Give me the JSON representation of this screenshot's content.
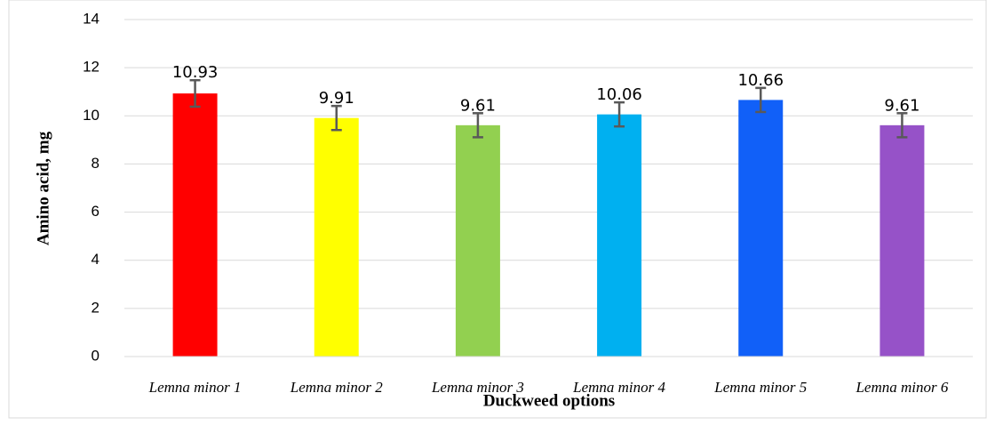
{
  "chart_data": {
    "type": "bar",
    "categories": [
      "Lemna minor 1",
      "Lemna minor 2",
      "Lemna minor 3",
      "Lemna minor 4",
      "Lemna minor 5",
      "Lemna minor 6"
    ],
    "values": [
      10.93,
      9.91,
      9.61,
      10.06,
      10.66,
      9.61
    ],
    "errors": [
      0.55,
      0.5,
      0.5,
      0.5,
      0.5,
      0.5
    ],
    "colors": [
      "#ff0000",
      "#ffff00",
      "#92d050",
      "#00b0f0",
      "#1160f8",
      "#9652c8"
    ],
    "x_label": "Duckweed options",
    "y_label": "Amino acid, mg",
    "ylim": [
      0,
      14
    ],
    "yticks": [
      0,
      2,
      4,
      6,
      8,
      10,
      12,
      14
    ],
    "grid": true
  }
}
